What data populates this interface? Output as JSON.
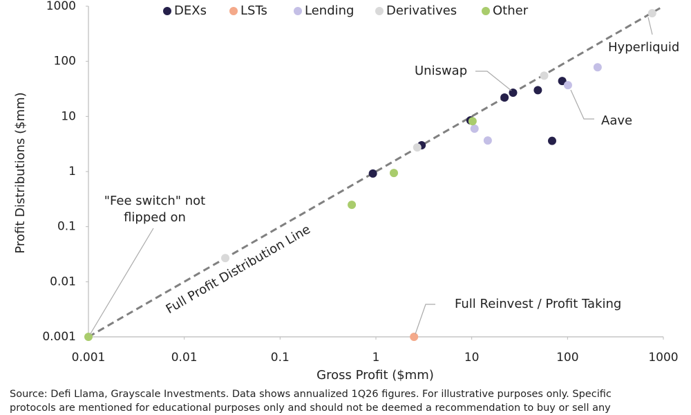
{
  "chart_data": {
    "type": "scatter",
    "x_label": "Gross Profit ($mm)",
    "y_label": "Profit Distributions ($mm)",
    "log_x": true,
    "log_y": true,
    "xlim": [
      0.001,
      1000
    ],
    "ylim": [
      0.001,
      1000
    ],
    "xticks": [
      0.001,
      0.01,
      0.1,
      1,
      10,
      100,
      1000
    ],
    "yticks": [
      0.001,
      0.01,
      0.1,
      1,
      10,
      100,
      1000
    ],
    "legend": "top",
    "series": [
      {
        "name": "DEXs",
        "color": "#25204a",
        "x": [
          0.93,
          3,
          9.7,
          22,
          27,
          49,
          88,
          69
        ],
        "values": [
          0.92,
          3,
          8.5,
          22,
          27,
          30,
          44,
          3.6
        ]
      },
      {
        "name": "LSTs",
        "color": "#f4a98a",
        "x": [
          2.5
        ],
        "values": [
          0.001
        ]
      },
      {
        "name": "Lending",
        "color": "#c4bfe6",
        "x": [
          10.7,
          14.7,
          101,
          206
        ],
        "values": [
          6,
          3.66,
          36.9,
          78
        ]
      },
      {
        "name": "Derivatives",
        "color": "#d9d9d9",
        "x": [
          0.0268,
          2.7,
          57,
          764
        ],
        "values": [
          0.0269,
          2.74,
          55,
          745
        ]
      },
      {
        "name": "Other",
        "color": "#a9cc6c",
        "x": [
          0.001,
          0.56,
          1.54,
          10.2
        ],
        "values": [
          0.001,
          0.249,
          0.94,
          8.2
        ]
      }
    ],
    "annotations": [
      "Hyperliquid",
      "Uniswap",
      "Aave",
      "\"Fee switch\" not",
      "flipped on",
      "Full Reinvest / Profit Taking",
      "Full Profit Distribution Line"
    ],
    "source": [
      "Source: Defi Llama, Grayscale Investments. Data shows annualized 1Q26 figures. For illustrative purposes only. Specific",
      "protocols are mentioned for educational purposes only and should not be deemed a recommendation to buy or sell any"
    ]
  }
}
